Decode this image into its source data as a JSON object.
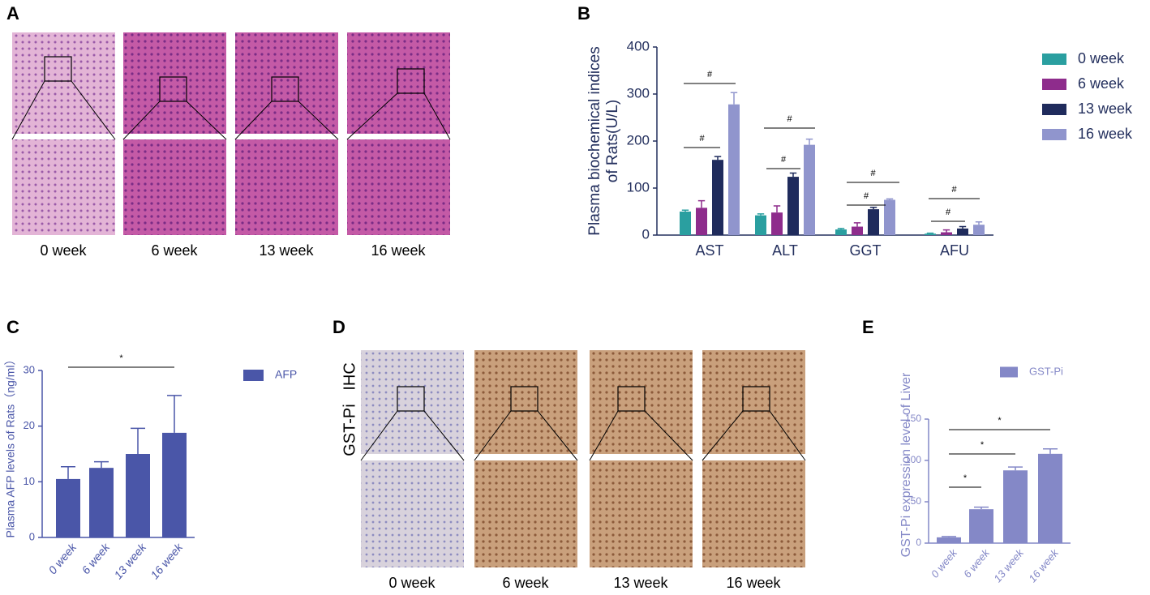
{
  "panels": {
    "A": {
      "label": "A",
      "captions": [
        "0 week",
        "6 week",
        "13 week",
        "16 week"
      ]
    },
    "D": {
      "label": "D",
      "row_label": "GST-Pi   IHC",
      "captions": [
        "0 week",
        "6 week",
        "13 week",
        "16 week"
      ]
    }
  },
  "chart_data": [
    {
      "type": "bar",
      "label": "B",
      "ylabel": "Plasma biochemical indices of Rats(U/L)",
      "categories": [
        "AST",
        "ALT",
        "GGT",
        "AFU"
      ],
      "series": [
        {
          "name": "0 week",
          "color": "#2a9fa0",
          "values": [
            50,
            42,
            12,
            3
          ],
          "errors": [
            3,
            3,
            2,
            1
          ]
        },
        {
          "name": "6 week",
          "color": "#8e2c8c",
          "values": [
            58,
            48,
            18,
            6
          ],
          "errors": [
            15,
            14,
            8,
            5
          ]
        },
        {
          "name": "13 week",
          "color": "#1f2b5c",
          "values": [
            160,
            124,
            55,
            14
          ],
          "errors": [
            7,
            8,
            4,
            4
          ]
        },
        {
          "name": "16 week",
          "color": "#9095cd",
          "values": [
            278,
            192,
            75,
            22
          ],
          "errors": [
            25,
            12,
            2,
            6
          ]
        }
      ],
      "ylim": [
        0,
        400
      ],
      "yticks": [
        0,
        100,
        200,
        300,
        400
      ],
      "significance": [
        "#",
        "#",
        "#",
        "#",
        "#",
        "#",
        "#",
        "#"
      ]
    },
    {
      "type": "bar",
      "label": "C",
      "ylabel": "Plasma AFP levels of Rats（ng/ml）",
      "categories": [
        "0 week",
        "6 week",
        "13 week",
        "16 week"
      ],
      "series": [
        {
          "name": "AFP",
          "color": "#4a56a8",
          "values": [
            10.5,
            12.5,
            15,
            18.8
          ],
          "errors": [
            2.2,
            1.1,
            4.6,
            6.7
          ]
        }
      ],
      "ylim": [
        0,
        30
      ],
      "yticks": [
        0,
        10,
        20,
        30
      ],
      "significance": [
        "*"
      ]
    },
    {
      "type": "bar",
      "label": "E",
      "ylabel": "GST-Pi expression level of Liver",
      "categories": [
        "0 week",
        "6 week",
        "13 week",
        "16 week"
      ],
      "series": [
        {
          "name": "GST-Pi",
          "color": "#8488c7",
          "values": [
            7,
            41,
            88,
            108
          ],
          "errors": [
            1,
            2.5,
            4,
            6
          ]
        }
      ],
      "ylim": [
        0,
        150
      ],
      "yticks": [
        0,
        50,
        100,
        150
      ],
      "significance": [
        "*",
        "*",
        "*"
      ]
    }
  ]
}
